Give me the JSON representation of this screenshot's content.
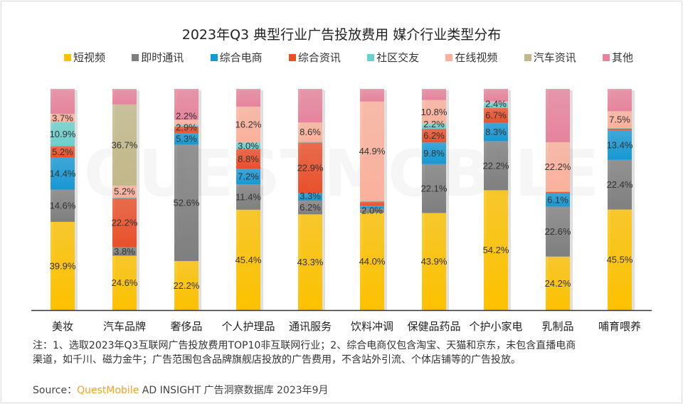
{
  "chart_data": {
    "type": "bar",
    "stacked": true,
    "percent": true,
    "title": "2023年Q3 典型行业广告投放费用 媒介行业类型分布",
    "ylim": [
      0,
      100
    ],
    "grid": false,
    "legend_position": "top",
    "categories": [
      "美妆",
      "汽车品牌",
      "奢侈品",
      "个人护理品",
      "通讯服务",
      "饮料冲调",
      "保健品药品",
      "个护小家电",
      "乳制品",
      "哺育喂养"
    ],
    "series": [
      {
        "name": "短视频",
        "color": "#fcc100",
        "values": [
          39.9,
          24.6,
          22.2,
          45.4,
          43.3,
          44.0,
          43.9,
          54.2,
          24.2,
          45.5
        ]
      },
      {
        "name": "即时通讯",
        "color": "#7f7f7f",
        "values": [
          14.6,
          3.8,
          52.6,
          11.4,
          6.2,
          2.0,
          22.1,
          22.2,
          22.6,
          22.4
        ]
      },
      {
        "name": "综合电商",
        "color": "#1798d4",
        "values": [
          14.4,
          0,
          5.3,
          7.2,
          3.3,
          1.2,
          9.8,
          8.3,
          6.1,
          13.4
        ]
      },
      {
        "name": "综合资讯",
        "color": "#e9502a",
        "values": [
          5.2,
          22.2,
          2.9,
          8.8,
          22.9,
          1.9,
          6.2,
          6.7,
          0.5,
          0.8
        ]
      },
      {
        "name": "社区交友",
        "color": "#6ccfcc",
        "values": [
          10.9,
          0.5,
          0.8,
          3.0,
          0.5,
          0.3,
          2.2,
          2.4,
          0.3,
          0.3
        ]
      },
      {
        "name": "在线视频",
        "color": "#fbb19c",
        "values": [
          3.7,
          5.2,
          2.2,
          16.2,
          8.6,
          44.9,
          10.8,
          0.5,
          22.2,
          7.5
        ]
      },
      {
        "name": "汽车资讯",
        "color": "#c2b88a",
        "values": [
          0,
          36.7,
          0,
          0,
          0,
          0,
          0,
          0,
          0,
          0
        ]
      },
      {
        "name": "其他",
        "color": "#e6849c",
        "values": [
          11.3,
          7.0,
          14.0,
          8.0,
          15.2,
          5.7,
          5.0,
          5.7,
          24.1,
          10.1
        ]
      }
    ]
  },
  "notes": {
    "line1": "注：1、选取2023年Q3互联网广告投放费用TOP10非互联网行业；2、综合电商仅包含淘宝、天猫和京东，未包含直播电商",
    "line2": "渠道，如千川、磁力金牛；广告范围包含品牌旗舰店投放的广告费用，不含站外引流、个体店铺等的广告投放。"
  },
  "source": {
    "prefix": "Source：",
    "brand": "QuestMobile",
    "rest": " AD INSIGHT 广告洞察数据库 2023年9月"
  },
  "watermark": "QUESTMOBILE"
}
